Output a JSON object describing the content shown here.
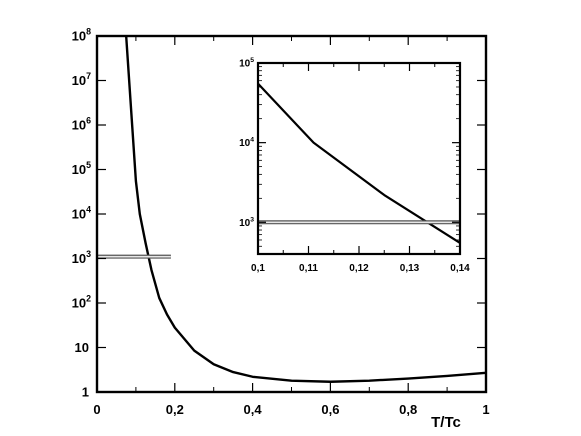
{
  "chart_data": [
    {
      "type": "line",
      "xlabel": "T/Tc",
      "ylabel": "",
      "yscale": "log",
      "xlim": [
        0,
        1
      ],
      "ylim": [
        1,
        100000000
      ],
      "x_ticks": [
        0,
        0.2,
        0.4,
        0.6,
        0.8,
        1
      ],
      "x_tick_labels": [
        "0",
        "0,2",
        "0,4",
        "0,6",
        "0,8",
        "1"
      ],
      "y_ticks": [
        {
          "value": 1,
          "label": "1",
          "exp": ""
        },
        {
          "value": 10,
          "label": "10",
          "exp": ""
        },
        {
          "value": 100,
          "label": "10",
          "exp": "2"
        },
        {
          "value": 1000,
          "label": "10",
          "exp": "3"
        },
        {
          "value": 10000,
          "label": "10",
          "exp": "4"
        },
        {
          "value": 100000,
          "label": "10",
          "exp": "5"
        },
        {
          "value": 1000000,
          "label": "10",
          "exp": "6"
        },
        {
          "value": 10000000,
          "label": "10",
          "exp": "7"
        },
        {
          "value": 100000000,
          "label": "10",
          "exp": "8"
        }
      ],
      "grid": false,
      "series": [
        {
          "x": [
            0.075,
            0.1,
            0.11,
            0.125,
            0.14,
            0.16,
            0.18,
            0.2,
            0.25,
            0.3,
            0.35,
            0.4,
            0.5,
            0.6,
            0.7,
            0.8,
            0.9,
            1.0
          ],
          "values": [
            100000000,
            55000,
            10000,
            2200,
            550,
            130,
            55,
            28,
            8.5,
            4.2,
            2.8,
            2.2,
            1.8,
            1.7,
            1.8,
            2.0,
            2.3,
            2.7
          ],
          "color": "#000000"
        },
        {
          "x": [
            0,
            0.19
          ],
          "values": [
            1100,
            1100
          ],
          "color": "#555555"
        }
      ]
    },
    {
      "type": "line",
      "role": "inset",
      "xlabel": "",
      "ylabel": "",
      "yscale": "log",
      "xlim": [
        0.1,
        0.14
      ],
      "ylim": [
        400,
        100000
      ],
      "x_ticks": [
        0.1,
        0.11,
        0.12,
        0.13,
        0.14
      ],
      "x_tick_labels": [
        "0,1",
        "0,11",
        "0,12",
        "0,13",
        "0,14"
      ],
      "y_ticks": [
        {
          "value": 1000,
          "label": "10",
          "exp": "3"
        },
        {
          "value": 10000,
          "label": "10",
          "exp": "4"
        },
        {
          "value": 100000,
          "label": "10",
          "exp": "5"
        }
      ],
      "grid": false,
      "series": [
        {
          "x": [
            0.1,
            0.111,
            0.125,
            0.14
          ],
          "values": [
            55000,
            10000,
            2200,
            550
          ],
          "color": "#000000"
        },
        {
          "x": [
            0.1,
            0.14
          ],
          "values": [
            1000,
            1000
          ],
          "color": "#555555"
        }
      ]
    }
  ]
}
